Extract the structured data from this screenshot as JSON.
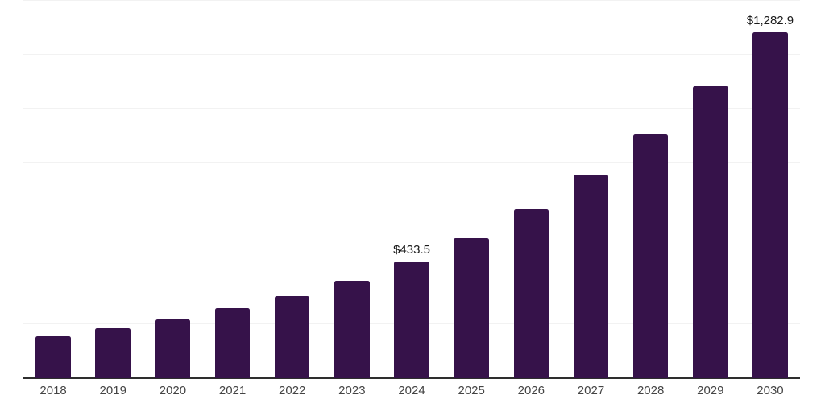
{
  "chart_data": {
    "type": "bar",
    "title": "",
    "xlabel": "",
    "ylabel": "",
    "categories": [
      "2018",
      "2019",
      "2020",
      "2021",
      "2022",
      "2023",
      "2024",
      "2025",
      "2026",
      "2027",
      "2028",
      "2029",
      "2030"
    ],
    "values": [
      154,
      184,
      217,
      260,
      305,
      362,
      433.5,
      520,
      627,
      756,
      906,
      1085,
      1282.9
    ],
    "data_labels": [
      "",
      "",
      "",
      "",
      "",
      "",
      "$433.5",
      "",
      "",
      "",
      "",
      "",
      "$1,282.9"
    ],
    "ylim": [
      0,
      1400
    ],
    "gridline_step": 200,
    "grid": true,
    "legend": false,
    "bar_color": "#36124A",
    "gridline_color": "#f2f2f2",
    "axis_line_color": "#2e2e2e",
    "tick_label_color": "#444444",
    "data_label_color": "#1a1a1a"
  }
}
